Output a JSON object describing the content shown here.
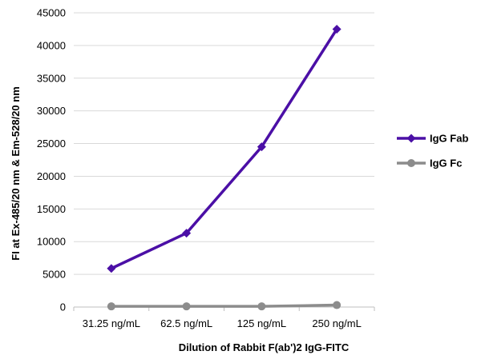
{
  "chart_data": {
    "type": "line",
    "title": "",
    "xlabel": "Dilution of Rabbit F(ab')2 IgG-FITC",
    "ylabel": "FI at Ex-485/20 nm & Em-528/20 nm",
    "categories": [
      "31.25 ng/mL",
      "62.5 ng/mL",
      "125 ng/mL",
      "250 ng/mL"
    ],
    "ylim": [
      0,
      45000
    ],
    "yticks": [
      0,
      5000,
      10000,
      15000,
      20000,
      25000,
      30000,
      35000,
      40000,
      45000
    ],
    "grid": "horizontal",
    "legend_position": "right",
    "series": [
      {
        "name": "IgG Fab",
        "values": [
          5900,
          11300,
          24500,
          42500
        ],
        "color": "#4b0fa6",
        "marker": "diamond"
      },
      {
        "name": "IgG Fc",
        "values": [
          100,
          100,
          100,
          300
        ],
        "color": "#8c8c8c",
        "marker": "circle"
      }
    ]
  }
}
